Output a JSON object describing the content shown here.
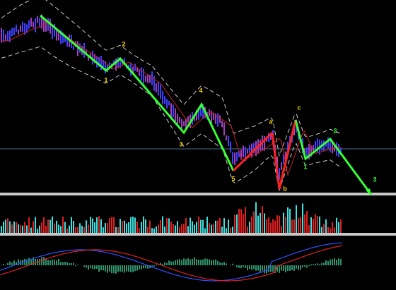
{
  "wave_labels": [
    "1",
    "2",
    "3",
    "4",
    "5",
    "a",
    "b",
    "c",
    "1",
    "2",
    "3"
  ]
}
